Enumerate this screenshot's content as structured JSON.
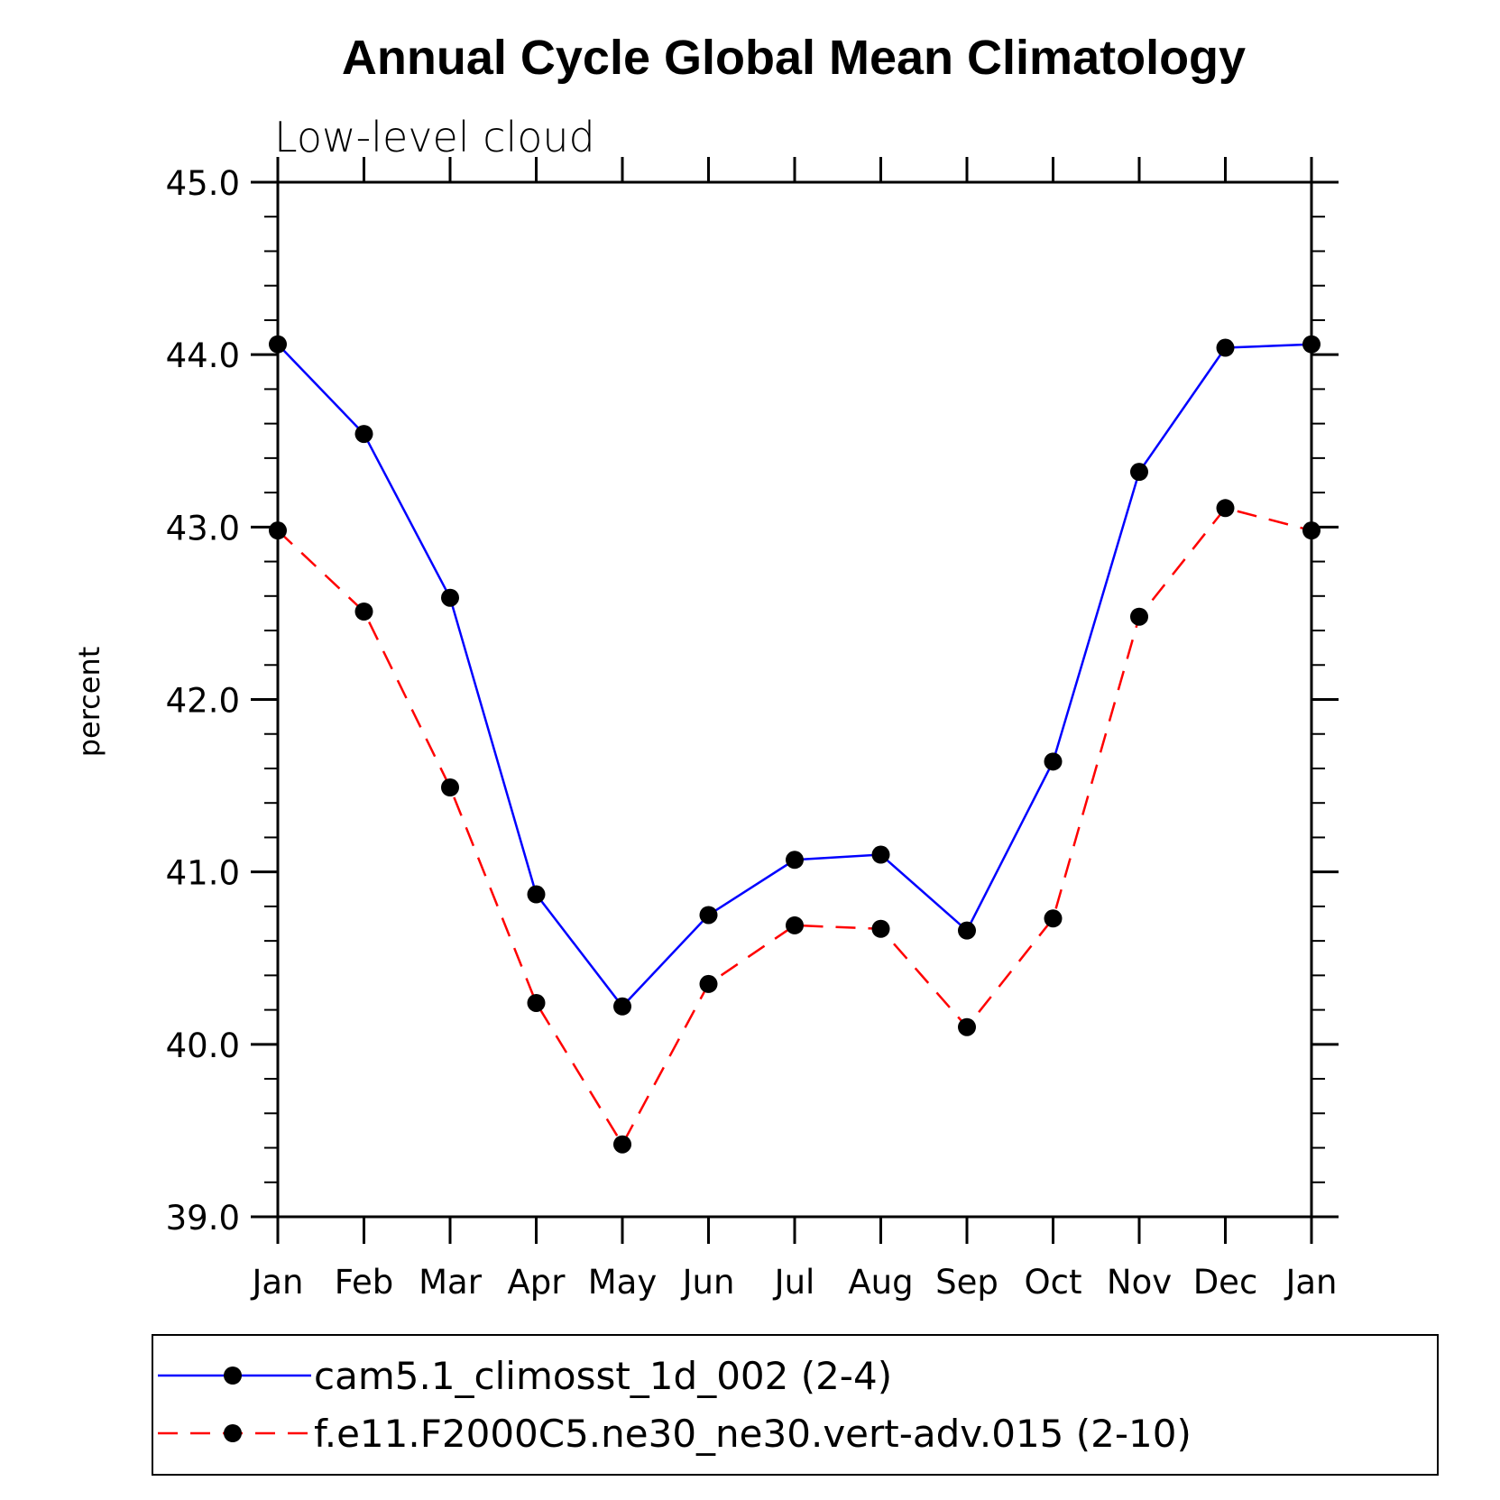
{
  "chart_data": {
    "type": "line",
    "title": "Annual Cycle Global Mean Climatology",
    "subtitle": "Low-level cloud",
    "xlabel": "",
    "ylabel": "percent",
    "categories": [
      "Jan",
      "Feb",
      "Mar",
      "Apr",
      "May",
      "Jun",
      "Jul",
      "Aug",
      "Sep",
      "Oct",
      "Nov",
      "Dec",
      "Jan"
    ],
    "ylim": [
      39.0,
      45.0
    ],
    "yticks": [
      39.0,
      40.0,
      41.0,
      42.0,
      43.0,
      44.0,
      45.0
    ],
    "ytick_labels": [
      "39.0",
      "40.0",
      "41.0",
      "42.0",
      "43.0",
      "44.0",
      "45.0"
    ],
    "legend_position": "bottom",
    "series": [
      {
        "name": "cam5.1_climosst_1d_002 (2-4)",
        "color": "#0000ff",
        "dash": "solid",
        "values": [
          44.06,
          43.54,
          42.59,
          40.87,
          40.22,
          40.75,
          41.07,
          41.1,
          40.66,
          41.64,
          43.32,
          44.04,
          44.06
        ]
      },
      {
        "name": "f.e11.F2000C5.ne30_ne30.vert-adv.015 (2-10)",
        "color": "#ff0000",
        "dash": "dashed",
        "values": [
          42.98,
          42.51,
          41.49,
          40.24,
          39.42,
          40.35,
          40.69,
          40.67,
          40.1,
          40.73,
          42.48,
          43.11,
          42.98
        ]
      }
    ]
  }
}
